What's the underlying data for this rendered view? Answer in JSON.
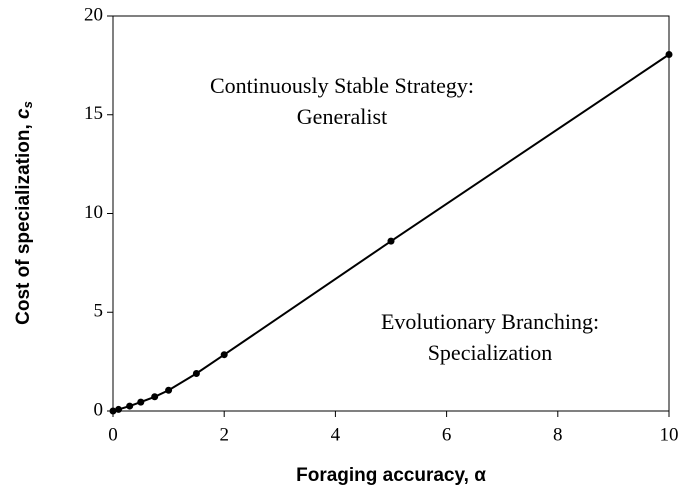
{
  "chart_data": {
    "type": "line",
    "xlabel": "Foraging accuracy, α",
    "ylabel": [
      "Cost of specialization, ",
      "c",
      "s"
    ],
    "annotations": [
      [
        "Continuously Stable Strategy:",
        "Generalist"
      ],
      [
        "Evolutionary Branching:",
        "Specialization"
      ]
    ],
    "x": [
      0,
      0.1,
      0.3,
      0.5,
      0.75,
      1,
      1.5,
      2,
      5,
      10
    ],
    "values": [
      0,
      0.08,
      0.25,
      0.45,
      0.72,
      1.05,
      1.9,
      2.85,
      8.6,
      18.05
    ],
    "color": "#000000",
    "xlim": [
      0,
      10
    ],
    "xticks": [
      0,
      2,
      4,
      6,
      8,
      10
    ],
    "ylim": [
      0,
      20
    ],
    "yticks": [
      0,
      5,
      10,
      15,
      20
    ],
    "grid": false
  }
}
